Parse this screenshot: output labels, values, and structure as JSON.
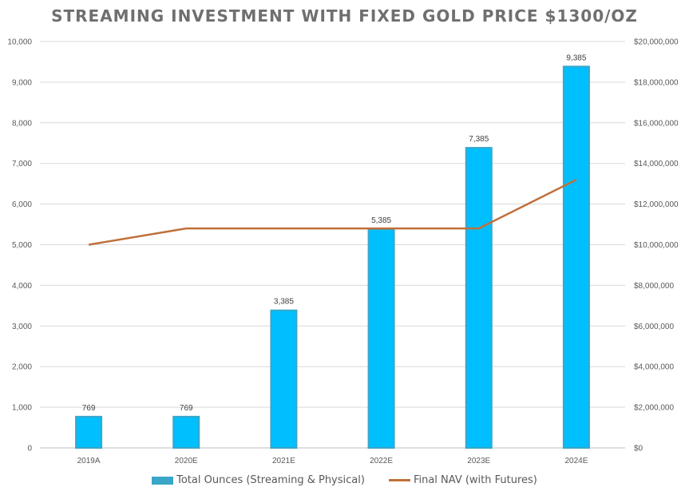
{
  "chart_data": {
    "type": "bar",
    "title": "STREAMING INVESTMENT WITH FIXED GOLD PRICE $1300/OZ",
    "categories": [
      "2019A",
      "2020E",
      "2021E",
      "2022E",
      "2023E",
      "2024E"
    ],
    "series": [
      {
        "name": "Total Ounces (Streaming & Physical)",
        "type": "bar",
        "axis": "left",
        "color": "#00bfff",
        "values": [
          769,
          769,
          3385,
          5385,
          7385,
          9385
        ],
        "data_labels": [
          "769",
          "769",
          "3,385",
          "5,385",
          "7,385",
          "9,385"
        ]
      },
      {
        "name": "Final NAV (with Futures)",
        "type": "line",
        "axis": "right",
        "color": "#c0703a",
        "values": [
          10000000,
          10800000,
          10800000,
          10800000,
          10800000,
          13200000
        ]
      }
    ],
    "y_left": {
      "ylim": [
        0,
        10000
      ],
      "ticks": [
        "0",
        "1,000",
        "2,000",
        "3,000",
        "4,000",
        "5,000",
        "6,000",
        "7,000",
        "8,000",
        "9,000",
        "10,000"
      ]
    },
    "y_right": {
      "ylim": [
        0,
        20000000
      ],
      "ticks": [
        "$0",
        "$2,000,000",
        "$4,000,000",
        "$6,000,000",
        "$8,000,000",
        "$10,000,000",
        "$12,000,000",
        "$14,000,000",
        "$16,000,000",
        "$18,000,000",
        "$20,000,000"
      ]
    },
    "grid": true,
    "legend_position": "bottom"
  }
}
